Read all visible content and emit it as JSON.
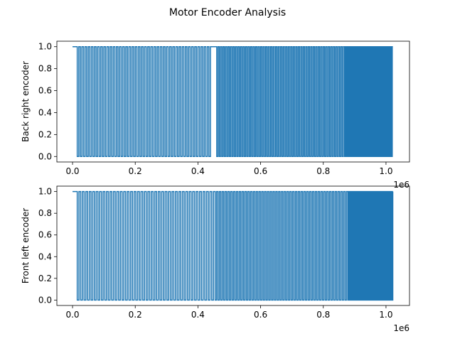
{
  "chart_data": {
    "type": "line",
    "title": "Motor Encoder Analysis",
    "series_color": "#1f77b4",
    "subplots": [
      {
        "ylabel": "Back right encoder",
        "xlabel": "",
        "x_offset_label": "1e6",
        "xlim": [
          -50000,
          1075000
        ],
        "ylim": [
          -0.05,
          1.05
        ],
        "x_ticks": [
          0,
          0.2,
          0.4,
          0.6,
          0.8,
          1.0
        ],
        "x_tick_labels": [
          "0.0",
          "0.2",
          "0.4",
          "0.6",
          "0.8",
          "1.0"
        ],
        "y_ticks": [
          0,
          0.2,
          0.4,
          0.6,
          0.8,
          1.0
        ],
        "y_tick_labels": [
          "0.0",
          "0.2",
          "0.4",
          "0.6",
          "0.8",
          "1.0"
        ],
        "x_range": [
          0,
          1022000
        ],
        "values": [
          0,
          1
        ],
        "low_pulses": [
          {
            "from": 15000,
            "to": 440000,
            "period": 10000
          },
          {
            "from": 460000,
            "to": 870000,
            "period": 8000
          },
          {
            "from": 870000,
            "to": 1020000,
            "period": 4000
          }
        ]
      },
      {
        "ylabel": "Front left encoder",
        "xlabel": "",
        "x_offset_label": "1e6",
        "xlim": [
          -50000,
          1075000
        ],
        "ylim": [
          -0.05,
          1.05
        ],
        "x_ticks": [
          0,
          0.2,
          0.4,
          0.6,
          0.8,
          1.0
        ],
        "x_tick_labels": [
          "0.0",
          "0.2",
          "0.4",
          "0.6",
          "0.8",
          "1.0"
        ],
        "y_ticks": [
          0,
          0.2,
          0.4,
          0.6,
          0.8,
          1.0
        ],
        "y_tick_labels": [
          "0.0",
          "0.2",
          "0.4",
          "0.6",
          "0.8",
          "1.0"
        ],
        "x_range": [
          0,
          1022000
        ],
        "values": [
          0,
          1
        ],
        "low_pulses": [
          {
            "from": 15000,
            "to": 450000,
            "period": 11000
          },
          {
            "from": 455000,
            "to": 880000,
            "period": 9000
          },
          {
            "from": 880000,
            "to": 1020000,
            "period": 4500
          }
        ]
      }
    ]
  }
}
